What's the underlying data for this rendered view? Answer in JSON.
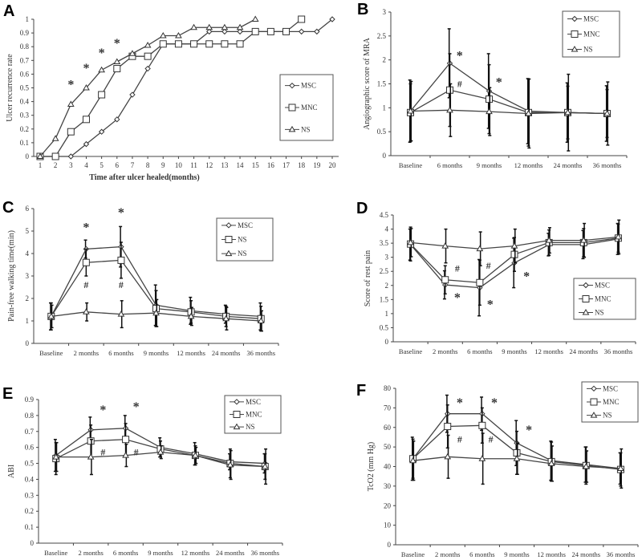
{
  "chart_data": [
    {
      "panel": "A",
      "type": "line",
      "xlabel": "Time after ulcer healed(months)",
      "ylabel": "Ulcer recurrence rate",
      "x": [
        1,
        2,
        3,
        4,
        5,
        6,
        7,
        8,
        9,
        10,
        11,
        12,
        13,
        14,
        15,
        16,
        17,
        18,
        19,
        20
      ],
      "xticks": [
        "1",
        "2",
        "3",
        "4",
        "5",
        "6",
        "7",
        "8",
        "9",
        "10",
        "11",
        "12",
        "13",
        "14",
        "15",
        "16",
        "17",
        "18",
        "19",
        "20"
      ],
      "ylim": [
        0,
        1
      ],
      "yticks": [
        "0",
        "0.1",
        "0.2",
        "0.3",
        "0.4",
        "0.5",
        "0.6",
        "0.7",
        "0.8",
        "0.9",
        "1"
      ],
      "legend": "right",
      "series": [
        {
          "name": "MSC",
          "marker": "diamond",
          "values": [
            0,
            0,
            0,
            0.09,
            0.18,
            0.27,
            0.45,
            0.64,
            0.82,
            0.82,
            0.82,
            0.91,
            0.91,
            0.91,
            0.91,
            0.91,
            0.91,
            0.91,
            0.91,
            1.0
          ]
        },
        {
          "name": "MNC",
          "marker": "square",
          "values": [
            0,
            0,
            0.18,
            0.27,
            0.45,
            0.64,
            0.73,
            0.73,
            0.82,
            0.82,
            0.82,
            0.82,
            0.82,
            0.82,
            0.91,
            0.91,
            0.91,
            1.0,
            null,
            null
          ]
        },
        {
          "name": "NS",
          "marker": "triangle",
          "values": [
            0,
            0.13,
            0.38,
            0.5,
            0.63,
            0.69,
            0.75,
            0.81,
            0.88,
            0.88,
            0.94,
            0.94,
            0.94,
            0.94,
            1.0,
            null,
            null,
            null,
            null,
            null
          ]
        }
      ],
      "annotations": [
        {
          "text": "*",
          "x": 3,
          "y": 0.53
        },
        {
          "text": "*",
          "x": 4,
          "y": 0.65
        },
        {
          "text": "*",
          "x": 5,
          "y": 0.76
        },
        {
          "text": "*",
          "x": 6,
          "y": 0.83
        }
      ]
    },
    {
      "panel": "B",
      "type": "line",
      "xlabel": "",
      "ylabel": "Angiographic score of MRA",
      "categories": [
        "Baseline",
        "6 months",
        "9 months",
        "12 months",
        "24 months",
        "36 months"
      ],
      "ylim": [
        0,
        3
      ],
      "yticks": [
        "0",
        "0.5",
        "1",
        "1.5",
        "2",
        "2.5",
        "3"
      ],
      "legend": "top-right",
      "series": [
        {
          "name": "MSC",
          "marker": "diamond",
          "values": [
            0.93,
            1.93,
            1.35,
            0.93,
            0.9,
            0.88
          ],
          "err": [
            0.65,
            0.72,
            0.78,
            0.68,
            0.62,
            0.58
          ]
        },
        {
          "name": "MNC",
          "marker": "square",
          "values": [
            0.9,
            1.37,
            1.18,
            0.9,
            0.9,
            0.88
          ],
          "err": [
            0.6,
            0.76,
            0.72,
            0.7,
            0.55,
            0.5
          ]
        },
        {
          "name": "NS",
          "marker": "triangle",
          "values": [
            0.93,
            0.95,
            0.92,
            0.88,
            0.9,
            0.88
          ],
          "err": [
            0.62,
            0.55,
            0.5,
            0.72,
            0.8,
            0.66
          ]
        }
      ],
      "annotations": [
        {
          "text": "*",
          "x": 1.25,
          "y": 2.1
        },
        {
          "text": "#",
          "x": 1.25,
          "y": 1.5
        },
        {
          "text": "*",
          "x": 2.25,
          "y": 1.55
        }
      ]
    },
    {
      "panel": "C",
      "type": "line",
      "xlabel": "",
      "ylabel": "Pain-free walking time(min)",
      "categories": [
        "Baseline",
        "2 months",
        "6 months",
        "9 months",
        "12 months",
        "24 months",
        "36 months"
      ],
      "ylim": [
        0,
        6
      ],
      "yticks": [
        "0",
        "1",
        "2",
        "3",
        "4",
        "5",
        "6"
      ],
      "legend": "top-right",
      "series": [
        {
          "name": "MSC",
          "marker": "diamond",
          "values": [
            1.2,
            4.2,
            4.3,
            1.7,
            1.45,
            1.3,
            1.2
          ],
          "err": [
            0.6,
            0.4,
            0.9,
            0.9,
            0.6,
            0.4,
            0.6
          ]
        },
        {
          "name": "NS",
          "marker": "square",
          "values": [
            1.2,
            3.6,
            3.7,
            1.55,
            1.4,
            1.2,
            1.1
          ],
          "err": [
            0.6,
            0.6,
            0.8,
            0.8,
            0.5,
            0.45,
            0.55
          ]
        },
        {
          "name": "NS",
          "marker": "triangle",
          "values": [
            1.2,
            1.4,
            1.3,
            1.35,
            1.2,
            1.1,
            1.0
          ],
          "err": [
            0.5,
            0.4,
            0.6,
            0.6,
            0.4,
            0.5,
            0.45
          ]
        }
      ],
      "annotations": [
        {
          "text": "*",
          "x": 1,
          "y": 5.2
        },
        {
          "text": "*",
          "x": 2,
          "y": 5.85
        },
        {
          "text": "#",
          "x": 1,
          "y": 2.6
        },
        {
          "text": "#",
          "x": 2,
          "y": 2.6
        }
      ]
    },
    {
      "panel": "D",
      "type": "line",
      "xlabel": "",
      "ylabel": "Score of rest pain",
      "categories": [
        "Baseline",
        "2 months",
        "6 months",
        "9 months",
        "12 months",
        "24 months",
        "36 months"
      ],
      "ylim": [
        0,
        4.5
      ],
      "yticks": [
        "0",
        "0.5",
        "1",
        "1.5",
        "2",
        "2.5",
        "3",
        "3.5",
        "4",
        "4.5"
      ],
      "legend": "bottom-right",
      "series": [
        {
          "name": "MSC",
          "marker": "diamond",
          "values": [
            3.45,
            2.02,
            1.92,
            2.8,
            3.45,
            3.45,
            3.65
          ],
          "err": [
            0.55,
            0.5,
            1.0,
            0.88,
            0.4,
            0.5,
            0.55
          ]
        },
        {
          "name": "MNC",
          "marker": "square",
          "values": [
            3.47,
            2.2,
            2.1,
            3.1,
            3.52,
            3.52,
            3.68
          ],
          "err": [
            0.6,
            0.5,
            0.8,
            0.6,
            0.45,
            0.5,
            0.5
          ]
        },
        {
          "name": "NS",
          "marker": "triangle",
          "values": [
            3.52,
            3.4,
            3.3,
            3.4,
            3.6,
            3.6,
            3.72
          ],
          "err": [
            0.5,
            0.6,
            0.6,
            0.6,
            0.45,
            0.6,
            0.6
          ]
        }
      ],
      "annotations": [
        {
          "text": "#",
          "x": 1.35,
          "y": 2.6
        },
        {
          "text": "#",
          "x": 2.25,
          "y": 2.7
        },
        {
          "text": "*",
          "x": 1.35,
          "y": 1.6
        },
        {
          "text": "*",
          "x": 2.3,
          "y": 1.35
        },
        {
          "text": "*",
          "x": 3.35,
          "y": 2.35
        }
      ]
    },
    {
      "panel": "E",
      "type": "line",
      "xlabel": "",
      "ylabel": "ABI",
      "categories": [
        "Baseline",
        "2 months",
        "6 months",
        "9 months",
        "12 months",
        "24 months",
        "36 months"
      ],
      "ylim": [
        0,
        0.9
      ],
      "yticks": [
        "0",
        "0.1",
        "0.2",
        "0.3",
        "0.4",
        "0.5",
        "0.6",
        "0.7",
        "0.8",
        "0.9"
      ],
      "legend": "top-right",
      "series": [
        {
          "name": "MSC",
          "marker": "diamond",
          "values": [
            0.55,
            0.71,
            0.72,
            0.6,
            0.56,
            0.51,
            0.5
          ],
          "err": [
            0.1,
            0.08,
            0.08,
            0.06,
            0.07,
            0.05,
            0.06
          ]
        },
        {
          "name": "MNC",
          "marker": "square",
          "values": [
            0.53,
            0.64,
            0.65,
            0.59,
            0.55,
            0.5,
            0.48
          ],
          "err": [
            0.1,
            0.1,
            0.1,
            0.05,
            0.06,
            0.09,
            0.08
          ]
        },
        {
          "name": "NS",
          "marker": "triangle",
          "values": [
            0.54,
            0.54,
            0.55,
            0.57,
            0.55,
            0.49,
            0.48
          ],
          "err": [
            0.09,
            0.11,
            0.07,
            0.04,
            0.05,
            0.09,
            0.11
          ]
        }
      ],
      "annotations": [
        {
          "text": "*",
          "x": 1.35,
          "y": 0.84
        },
        {
          "text": "*",
          "x": 2.3,
          "y": 0.86
        },
        {
          "text": "#",
          "x": 1.35,
          "y": 0.57
        },
        {
          "text": "#",
          "x": 2.3,
          "y": 0.57
        }
      ]
    },
    {
      "panel": "F",
      "type": "line",
      "xlabel": "",
      "ylabel": "TcO2 (mm Hg)",
      "categories": [
        "Baseline",
        "2 months",
        "6 months",
        "9 months",
        "12 months",
        "24 months",
        "36 months"
      ],
      "ylim": [
        0,
        80
      ],
      "yticks": [
        "0",
        "10",
        "20",
        "30",
        "40",
        "50",
        "60",
        "70",
        "80"
      ],
      "legend": "top-right",
      "series": [
        {
          "name": "MSC",
          "marker": "diamond",
          "values": [
            44,
            67,
            67,
            52,
            43,
            41,
            39
          ],
          "err": [
            11,
            9.5,
            8.5,
            11.5,
            10,
            9,
            8
          ]
        },
        {
          "name": "MNC",
          "marker": "square",
          "values": [
            44,
            60.5,
            61,
            47,
            42.5,
            40.5,
            38.5
          ],
          "err": [
            10,
            11,
            9,
            11,
            10,
            9.5,
            8.5
          ]
        },
        {
          "name": "NS",
          "marker": "triangle",
          "values": [
            43,
            45,
            44,
            44,
            41.5,
            40,
            39
          ],
          "err": [
            10,
            11,
            13,
            8,
            9,
            8,
            10
          ]
        }
      ],
      "annotations": [
        {
          "text": "*",
          "x": 1.35,
          "y": 73
        },
        {
          "text": "*",
          "x": 2.35,
          "y": 73
        },
        {
          "text": "*",
          "x": 3.35,
          "y": 59
        },
        {
          "text": "#",
          "x": 1.35,
          "y": 54
        },
        {
          "text": "#",
          "x": 2.25,
          "y": 54
        }
      ]
    }
  ]
}
